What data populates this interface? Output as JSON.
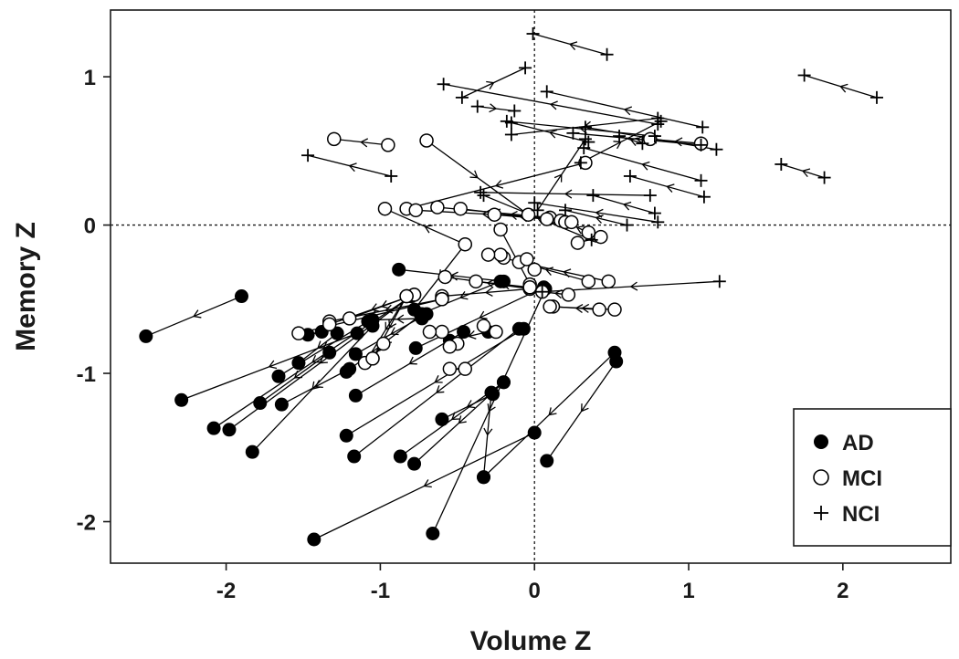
{
  "chart_data": {
    "type": "scatter",
    "xlabel": "Volume Z",
    "ylabel": "Memory Z",
    "xlim": [
      -2.75,
      2.7
    ],
    "ylim": [
      -2.28,
      1.45
    ],
    "xticks": [
      -2,
      -1,
      0,
      1,
      2
    ],
    "xtick_labels": [
      "-2",
      "-1",
      "0",
      "1",
      "2"
    ],
    "yticks": [
      -2,
      -1,
      0,
      1
    ],
    "ytick_labels": [
      "-2",
      "-1",
      "0",
      "1"
    ],
    "reference_lines": {
      "x": 0,
      "y": 0
    },
    "legend": {
      "position": "bottom-right",
      "entries": [
        {
          "label": "AD",
          "marker": "filled-circle"
        },
        {
          "label": "MCI",
          "marker": "open-circle"
        },
        {
          "label": "NCI",
          "marker": "plus"
        }
      ]
    },
    "series": [
      {
        "name": "AD",
        "marker": "filled-circle",
        "segments": [
          [
            [
              -1.9,
              -0.48
            ],
            [
              -2.52,
              -0.75
            ]
          ],
          [
            [
              -1.15,
              -0.73
            ],
            [
              -2.29,
              -1.18
            ]
          ],
          [
            [
              -0.8,
              -0.48
            ],
            [
              -2.08,
              -1.37
            ]
          ],
          [
            [
              -0.8,
              -0.48
            ],
            [
              -1.98,
              -1.38
            ]
          ],
          [
            [
              -1.05,
              -0.68
            ],
            [
              -1.83,
              -1.53
            ]
          ],
          [
            [
              -1.08,
              -0.65
            ],
            [
              -1.66,
              -1.02
            ]
          ],
          [
            [
              -1.28,
              -0.73
            ],
            [
              -1.53,
              -0.93
            ]
          ],
          [
            [
              -1.38,
              -0.72
            ],
            [
              -1.47,
              -0.74
            ]
          ],
          [
            [
              -1.33,
              -0.86
            ],
            [
              -1.78,
              -1.2
            ]
          ],
          [
            [
              -1.2,
              -0.97
            ],
            [
              -1.64,
              -1.21
            ]
          ],
          [
            [
              -0.73,
              -0.63
            ],
            [
              -1.05,
              -0.64
            ]
          ],
          [
            [
              -0.7,
              -0.6
            ],
            [
              -1.16,
              -0.87
            ]
          ],
          [
            [
              -0.46,
              -0.72
            ],
            [
              -1.16,
              -1.15
            ]
          ],
          [
            [
              -0.73,
              -0.6
            ],
            [
              -1.22,
              -0.99
            ]
          ],
          [
            [
              -0.07,
              -0.7
            ],
            [
              -1.22,
              -1.42
            ]
          ],
          [
            [
              -0.1,
              -0.7
            ],
            [
              -1.17,
              -1.56
            ]
          ],
          [
            [
              -0.2,
              -1.06
            ],
            [
              -0.87,
              -1.56
            ]
          ],
          [
            [
              -0.2,
              -1.06
            ],
            [
              -0.78,
              -1.61
            ]
          ],
          [
            [
              -0.27,
              -1.14
            ],
            [
              -0.6,
              -1.31
            ]
          ],
          [
            [
              -0.28,
              -1.13
            ],
            [
              -0.33,
              -1.7
            ]
          ],
          [
            [
              0.52,
              -0.86
            ],
            [
              -0.33,
              -1.7
            ]
          ],
          [
            [
              0.0,
              -1.4
            ],
            [
              -1.43,
              -2.12
            ]
          ],
          [
            [
              0.07,
              -0.43
            ],
            [
              -0.66,
              -2.08
            ]
          ],
          [
            [
              0.53,
              -0.92
            ],
            [
              0.08,
              -1.59
            ]
          ],
          [
            [
              0.06,
              -0.42
            ],
            [
              -0.77,
              -0.83
            ]
          ],
          [
            [
              -0.22,
              -0.38
            ],
            [
              -0.74,
              -0.6
            ]
          ],
          [
            [
              -0.2,
              -0.38
            ],
            [
              -0.88,
              -0.3
            ]
          ],
          [
            [
              -0.45,
              -0.13
            ],
            [
              -0.78,
              -0.57
            ]
          ],
          [
            [
              -0.3,
              -0.72
            ],
            [
              -0.55,
              -0.78
            ]
          ]
        ]
      },
      {
        "name": "MCI",
        "marker": "open-circle",
        "segments": [
          [
            [
              -0.95,
              0.54
            ],
            [
              -1.3,
              0.58
            ]
          ],
          [
            [
              -0.7,
              0.57
            ],
            [
              -0.04,
              0.07
            ]
          ],
          [
            [
              -0.45,
              -0.13
            ],
            [
              -0.97,
              0.11
            ]
          ],
          [
            [
              0.33,
              0.42
            ],
            [
              -0.83,
              0.11
            ]
          ],
          [
            [
              0.1,
              0.05
            ],
            [
              -0.77,
              0.1
            ]
          ],
          [
            [
              0.1,
              0.05
            ],
            [
              -0.63,
              0.12
            ]
          ],
          [
            [
              0.17,
              0.03
            ],
            [
              -0.48,
              0.11
            ]
          ],
          [
            [
              0.08,
              0.04
            ],
            [
              -0.26,
              0.07
            ]
          ],
          [
            [
              0.35,
              -0.05
            ],
            [
              0.2,
              0.02
            ]
          ],
          [
            [
              0.43,
              -0.08
            ],
            [
              0.28,
              -0.12
            ]
          ],
          [
            [
              -0.03,
              -0.4
            ],
            [
              -0.22,
              -0.03
            ]
          ],
          [
            [
              -0.03,
              -0.43
            ],
            [
              -0.58,
              -0.35
            ]
          ],
          [
            [
              -0.03,
              -0.43
            ],
            [
              -0.6,
              -0.48
            ]
          ],
          [
            [
              -0.03,
              -0.42
            ],
            [
              -0.38,
              -0.38
            ]
          ],
          [
            [
              0.48,
              -0.38
            ],
            [
              -0.1,
              -0.25
            ]
          ],
          [
            [
              0.35,
              -0.38
            ],
            [
              -0.2,
              -0.22
            ]
          ],
          [
            [
              0.42,
              -0.57
            ],
            [
              0.12,
              -0.55
            ]
          ],
          [
            [
              0.52,
              -0.57
            ],
            [
              0.1,
              -0.55
            ]
          ],
          [
            [
              0.22,
              -0.47
            ],
            [
              0.05,
              -0.45
            ]
          ],
          [
            [
              -0.6,
              -0.5
            ],
            [
              -1.53,
              -0.73
            ]
          ],
          [
            [
              -0.6,
              -0.5
            ],
            [
              -1.33,
              -0.65
            ]
          ],
          [
            [
              -0.78,
              -0.47
            ],
            [
              -1.33,
              -0.67
            ]
          ],
          [
            [
              -0.78,
              -0.47
            ],
            [
              -1.2,
              -0.63
            ]
          ],
          [
            [
              -0.83,
              -0.48
            ],
            [
              -1.05,
              -0.9
            ]
          ],
          [
            [
              -0.83,
              -0.48
            ],
            [
              -1.1,
              -0.93
            ]
          ],
          [
            [
              -0.98,
              -0.8
            ],
            [
              -1.05,
              -0.9
            ]
          ],
          [
            [
              -0.5,
              -0.8
            ],
            [
              -0.55,
              -0.82
            ]
          ],
          [
            [
              -0.45,
              -0.97
            ],
            [
              -0.55,
              -0.97
            ]
          ],
          [
            [
              -0.25,
              -0.72
            ],
            [
              -0.33,
              -0.68
            ]
          ],
          [
            [
              -0.05,
              -0.23
            ],
            [
              0.0,
              -0.3
            ]
          ],
          [
            [
              0.2,
              0.02
            ],
            [
              0.24,
              0.02
            ]
          ],
          [
            [
              1.08,
              0.55
            ],
            [
              0.75,
              0.58
            ]
          ],
          [
            [
              -0.6,
              -0.72
            ],
            [
              -0.68,
              -0.72
            ]
          ],
          [
            [
              -0.22,
              -0.2
            ],
            [
              -0.3,
              -0.2
            ]
          ]
        ]
      },
      {
        "name": "NCI",
        "marker": "plus",
        "segments": [
          [
            [
              0.47,
              1.15
            ],
            [
              -0.01,
              1.29
            ]
          ],
          [
            [
              -0.47,
              0.86
            ],
            [
              -0.06,
              1.06
            ]
          ],
          [
            [
              1.09,
              0.66
            ],
            [
              0.08,
              0.9
            ]
          ],
          [
            [
              0.8,
              0.68
            ],
            [
              -0.59,
              0.95
            ]
          ],
          [
            [
              2.22,
              0.86
            ],
            [
              1.75,
              1.01
            ]
          ],
          [
            [
              -0.37,
              0.8
            ],
            [
              -0.13,
              0.77
            ]
          ],
          [
            [
              0.35,
              0.56
            ],
            [
              -0.15,
              0.69
            ]
          ],
          [
            [
              0.78,
              0.6
            ],
            [
              -0.18,
              0.7
            ]
          ],
          [
            [
              0.8,
              0.72
            ],
            [
              -0.15,
              0.61
            ]
          ],
          [
            [
              -0.93,
              0.33
            ],
            [
              -1.47,
              0.47
            ]
          ],
          [
            [
              1.88,
              0.32
            ],
            [
              1.6,
              0.41
            ]
          ],
          [
            [
              1.08,
              0.54
            ],
            [
              0.25,
              0.62
            ]
          ],
          [
            [
              1.18,
              0.51
            ],
            [
              0.33,
              0.66
            ]
          ],
          [
            [
              1.08,
              0.3
            ],
            [
              0.32,
              0.52
            ]
          ],
          [
            [
              1.1,
              0.19
            ],
            [
              0.62,
              0.33
            ]
          ],
          [
            [
              0.75,
              0.2
            ],
            [
              -0.35,
              0.22
            ]
          ],
          [
            [
              0.78,
              0.08
            ],
            [
              0.38,
              0.2
            ]
          ],
          [
            [
              0.8,
              0.02
            ],
            [
              0.0,
              0.15
            ]
          ],
          [
            [
              0.37,
              -0.1
            ],
            [
              -0.33,
              0.2
            ]
          ],
          [
            [
              0.02,
              0.1
            ],
            [
              0.33,
              0.58
            ]
          ],
          [
            [
              0.3,
              0.42
            ],
            [
              0.82,
              0.7
            ]
          ],
          [
            [
              0.7,
              0.55
            ],
            [
              0.55,
              0.6
            ]
          ],
          [
            [
              0.6,
              0.0
            ],
            [
              0.2,
              0.1
            ]
          ],
          [
            [
              1.2,
              -0.38
            ],
            [
              0.05,
              -0.45
            ]
          ]
        ]
      }
    ]
  }
}
